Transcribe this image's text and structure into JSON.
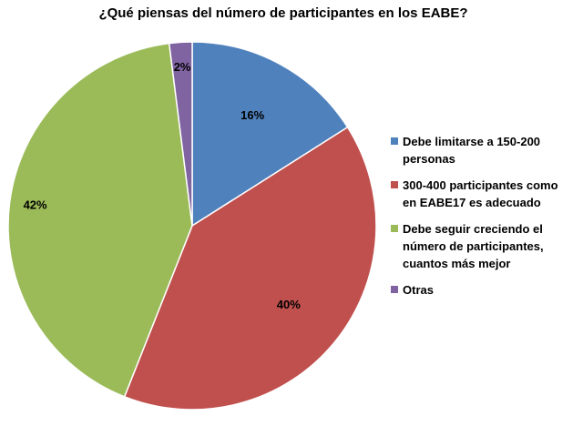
{
  "chart_data": {
    "type": "pie",
    "title": "¿Qué piensas del número de participantes en los EABE?",
    "categories": [
      "Debe limitarse a 150-200 personas",
      "300-400 participantes como en EABE17 es adecuado",
      "Debe seguir creciendo el número de participantes, cuantos más mejor",
      "Otras"
    ],
    "values": [
      16,
      40,
      42,
      2
    ],
    "data_labels": [
      "16%",
      "40%",
      "42%",
      "2%"
    ],
    "colors": [
      "#4F81BD",
      "#C0504D",
      "#9BBB59",
      "#8064A2"
    ],
    "legend_position": "right",
    "legend": [
      [
        "Debe limitarse a 150-200",
        "personas"
      ],
      [
        "300-400 participantes como",
        "en EABE17 es adecuado"
      ],
      [
        "Debe seguir creciendo el",
        "número de participantes,",
        "cuantos más mejor"
      ],
      [
        "Otras"
      ]
    ]
  }
}
